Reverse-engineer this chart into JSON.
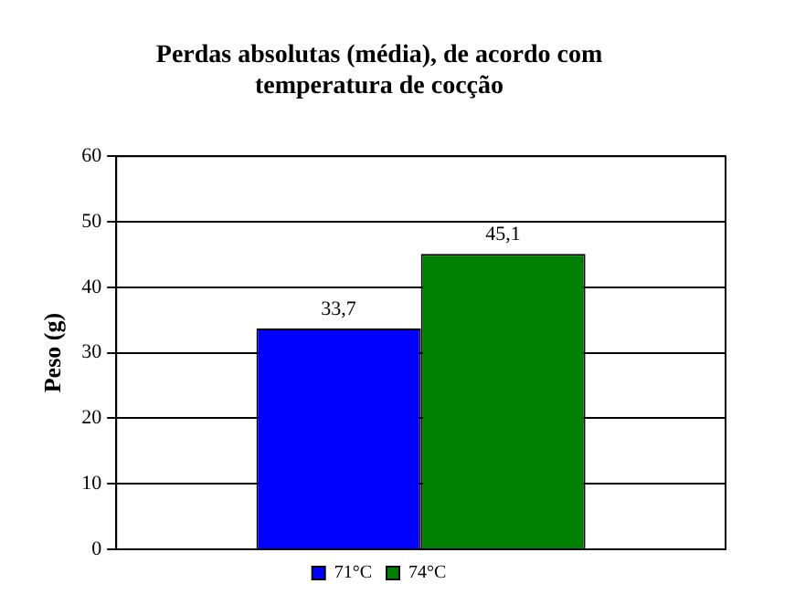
{
  "chart_data": {
    "type": "bar",
    "title": "Perdas absolutas (média), de acordo com\ntemperatura de cocção",
    "ylabel": "Peso (g)",
    "categories": [
      null
    ],
    "series": [
      {
        "name": "71°C",
        "color": "#0000ff",
        "values": [
          33.7
        ],
        "value_labels": [
          "33,7"
        ]
      },
      {
        "name": "74°C",
        "color": "#008000",
        "values": [
          45.1
        ],
        "value_labels": [
          "45,1"
        ]
      }
    ],
    "ylim": [
      0,
      60
    ],
    "yticks": [
      0,
      10,
      20,
      30,
      40,
      50,
      60
    ],
    "grid": "y",
    "legend": "bottom"
  }
}
